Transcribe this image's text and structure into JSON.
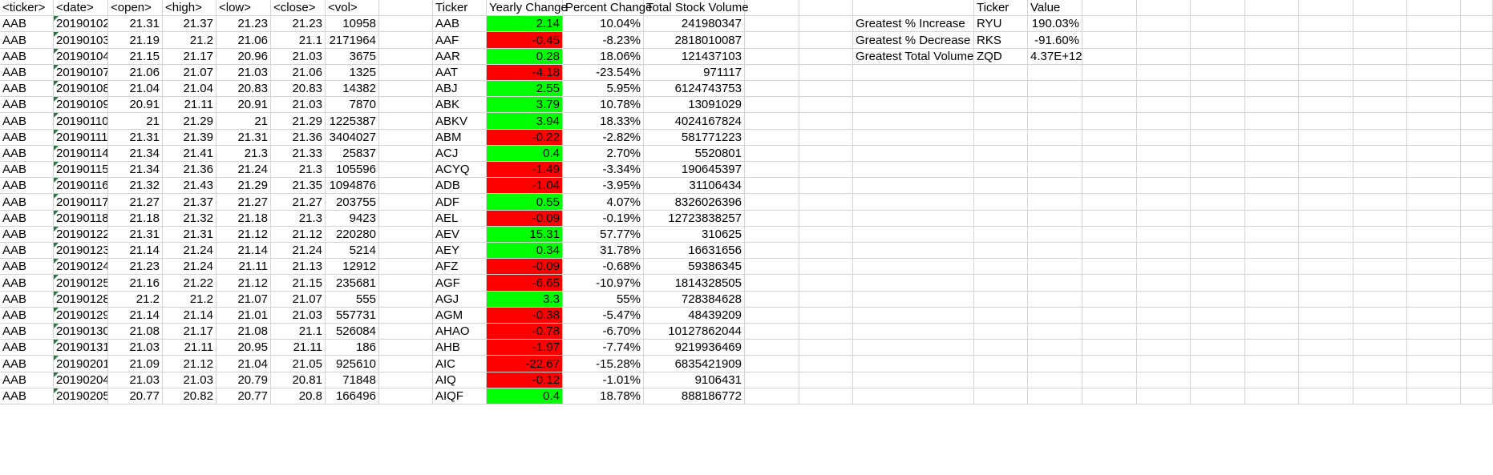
{
  "colors": {
    "positive_fill": "#00ff00",
    "negative_fill": "#ff0000",
    "gridline": "#d4d4d4",
    "text_marker": "#1f7a3a"
  },
  "sheet": {
    "headers": {
      "ticker": "<ticker>",
      "date": "<date>",
      "open": "<open>",
      "high": "<high>",
      "low": "<low>",
      "close": "<close>",
      "vol": "<vol>"
    },
    "data_rows": [
      [
        "AAB",
        "20190102",
        "21.31",
        "21.37",
        "21.23",
        "21.23",
        "10958"
      ],
      [
        "AAB",
        "20190103",
        "21.19",
        "21.2",
        "21.06",
        "21.1",
        "2171964"
      ],
      [
        "AAB",
        "20190104",
        "21.15",
        "21.17",
        "20.96",
        "21.03",
        "3675"
      ],
      [
        "AAB",
        "20190107",
        "21.06",
        "21.07",
        "21.03",
        "21.06",
        "1325"
      ],
      [
        "AAB",
        "20190108",
        "21.04",
        "21.04",
        "20.83",
        "20.83",
        "14382"
      ],
      [
        "AAB",
        "20190109",
        "20.91",
        "21.11",
        "20.91",
        "21.03",
        "7870"
      ],
      [
        "AAB",
        "20190110",
        "21",
        "21.29",
        "21",
        "21.29",
        "1225387"
      ],
      [
        "AAB",
        "20190111",
        "21.31",
        "21.39",
        "21.31",
        "21.36",
        "3404027"
      ],
      [
        "AAB",
        "20190114",
        "21.34",
        "21.41",
        "21.3",
        "21.33",
        "25837"
      ],
      [
        "AAB",
        "20190115",
        "21.34",
        "21.36",
        "21.24",
        "21.3",
        "105596"
      ],
      [
        "AAB",
        "20190116",
        "21.32",
        "21.43",
        "21.29",
        "21.35",
        "1094876"
      ],
      [
        "AAB",
        "20190117",
        "21.27",
        "21.37",
        "21.27",
        "21.27",
        "203755"
      ],
      [
        "AAB",
        "20190118",
        "21.18",
        "21.32",
        "21.18",
        "21.3",
        "9423"
      ],
      [
        "AAB",
        "20190122",
        "21.31",
        "21.31",
        "21.12",
        "21.12",
        "220280"
      ],
      [
        "AAB",
        "20190123",
        "21.14",
        "21.24",
        "21.14",
        "21.24",
        "5214"
      ],
      [
        "AAB",
        "20190124",
        "21.23",
        "21.24",
        "21.11",
        "21.13",
        "12912"
      ],
      [
        "AAB",
        "20190125",
        "21.16",
        "21.22",
        "21.12",
        "21.15",
        "235681"
      ],
      [
        "AAB",
        "20190128",
        "21.2",
        "21.2",
        "21.07",
        "21.07",
        "555"
      ],
      [
        "AAB",
        "20190129",
        "21.14",
        "21.14",
        "21.01",
        "21.03",
        "557731"
      ],
      [
        "AAB",
        "20190130",
        "21.08",
        "21.17",
        "21.08",
        "21.1",
        "526084"
      ],
      [
        "AAB",
        "20190131",
        "21.03",
        "21.11",
        "20.95",
        "21.11",
        "186"
      ],
      [
        "AAB",
        "20190201",
        "21.09",
        "21.12",
        "21.04",
        "21.05",
        "925610"
      ],
      [
        "AAB",
        "20190204",
        "21.03",
        "21.03",
        "20.79",
        "20.81",
        "71848"
      ],
      [
        "AAB",
        "20190205",
        "20.77",
        "20.82",
        "20.77",
        "20.8",
        "166496"
      ]
    ],
    "summary_headers": {
      "ticker": "Ticker",
      "yearly_change": "Yearly Change",
      "percent_change": "Percent Change",
      "total_volume": "Total Stock Volume"
    },
    "summary_rows": [
      [
        "AAB",
        "2.14",
        "10.04%",
        "241980347"
      ],
      [
        "AAF",
        "-0.45",
        "-8.23%",
        "2818010087"
      ],
      [
        "AAR",
        "0.28",
        "18.06%",
        "121437103"
      ],
      [
        "AAT",
        "-4.18",
        "-23.54%",
        "971117"
      ],
      [
        "ABJ",
        "2.55",
        "5.95%",
        "6124743753"
      ],
      [
        "ABK",
        "3.79",
        "10.78%",
        "13091029"
      ],
      [
        "ABKV",
        "3.94",
        "18.33%",
        "4024167824"
      ],
      [
        "ABM",
        "-0.22",
        "-2.82%",
        "581771223"
      ],
      [
        "ACJ",
        "0.4",
        "2.70%",
        "5520801"
      ],
      [
        "ACYQ",
        "-1.49",
        "-3.34%",
        "190645397"
      ],
      [
        "ADB",
        "-1.04",
        "-3.95%",
        "31106434"
      ],
      [
        "ADF",
        "0.55",
        "4.07%",
        "8326026396"
      ],
      [
        "AEL",
        "-0.09",
        "-0.19%",
        "12723838257"
      ],
      [
        "AEV",
        "15.31",
        "57.77%",
        "310625"
      ],
      [
        "AEY",
        "0.34",
        "31.78%",
        "16631656"
      ],
      [
        "AFZ",
        "-0.09",
        "-0.68%",
        "59386345"
      ],
      [
        "AGF",
        "-6.65",
        "-10.97%",
        "1814328505"
      ],
      [
        "AGJ",
        "3.3",
        "55%",
        "728384628"
      ],
      [
        "AGM",
        "-0.38",
        "-5.47%",
        "48439209"
      ],
      [
        "AHAO",
        "-0.78",
        "-6.70%",
        "10127862044"
      ],
      [
        "AHB",
        "-1.97",
        "-7.74%",
        "9219936469"
      ],
      [
        "AIC",
        "-22.67",
        "-15.28%",
        "6835421909"
      ],
      [
        "AIQ",
        "-0.12",
        "-1.01%",
        "9106431"
      ],
      [
        "AIQF",
        "0.4",
        "18.78%",
        "888186772"
      ]
    ],
    "greatest_headers": {
      "ticker": "Ticker",
      "value": "Value"
    },
    "greatest_rows": [
      [
        "Greatest % Increase",
        "RYU",
        "190.03%"
      ],
      [
        "Greatest % Decrease",
        "RKS",
        "-91.60%"
      ],
      [
        "Greatest Total Volume",
        "ZQD",
        "4.37E+12"
      ]
    ]
  }
}
